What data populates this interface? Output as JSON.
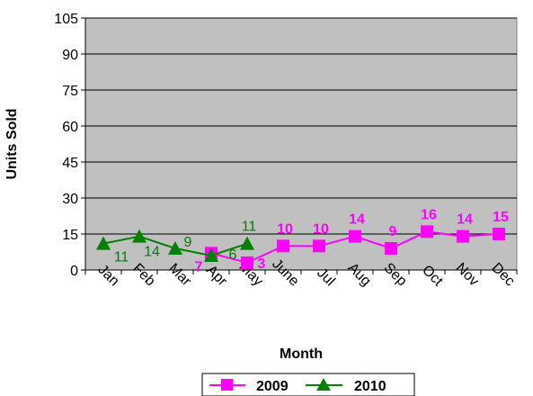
{
  "chart_data": {
    "type": "line",
    "title": "",
    "xlabel": "Month",
    "ylabel": "Units Sold",
    "ylim": [
      0,
      105
    ],
    "yticks": [
      "0",
      "15",
      "30",
      "45",
      "60",
      "75",
      "90",
      "105"
    ],
    "categories": [
      "Jan",
      "Feb",
      "Mar",
      "Apr",
      "May",
      "June",
      "Jul",
      "Aug",
      "Sep",
      "Oct",
      "Nov",
      "Dec"
    ],
    "grid": true,
    "plot_background": "#c0c0c0",
    "legend_position": "bottom",
    "series": [
      {
        "name": "2009",
        "color": "#ff00ff",
        "marker": "square",
        "x": [
          3.5,
          4.5,
          5.5,
          6.5,
          7.5,
          8.5,
          9.5,
          10.5,
          11.5
        ],
        "values": [
          7,
          3,
          10,
          10,
          14,
          9,
          16,
          14,
          15
        ],
        "labels": [
          "7",
          "3",
          "10",
          "10",
          "14",
          "9",
          "16",
          "14",
          "15"
        ]
      },
      {
        "name": "2010",
        "color": "#008000",
        "marker": "triangle",
        "x": [
          0.5,
          1.5,
          2.5,
          3.5,
          4.5
        ],
        "values": [
          11,
          14,
          9,
          6,
          11
        ],
        "labels": [
          "11",
          "14",
          "9",
          "6",
          "11"
        ]
      }
    ]
  }
}
